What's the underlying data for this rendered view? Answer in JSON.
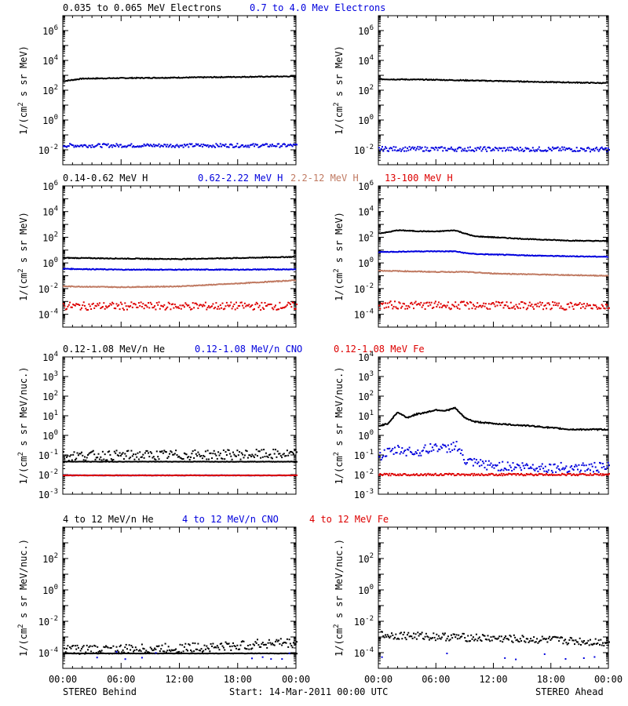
{
  "colors": {
    "black": "#000000",
    "blue": "#0000dd",
    "salmon": "#c07a62",
    "red": "#dd0000"
  },
  "footer": {
    "left": "STEREO Behind",
    "center": "Start: 14-Mar-2011 00:00 UTC",
    "right": "STEREO Ahead"
  },
  "x_ticks": [
    "00:00",
    "06:00",
    "12:00",
    "18:00",
    "00:00"
  ],
  "chart_data": [
    {
      "type": "scatter",
      "scale": "log",
      "ylabel": "1/(cm^2 s sr MeV)",
      "ylim_exp": [
        -3,
        7
      ],
      "y_ticks": [
        {
          "base": "10",
          "exp": "6"
        },
        {
          "base": "10",
          "exp": "4"
        },
        {
          "base": "10",
          "exp": "2"
        },
        {
          "base": "10",
          "exp": "0"
        },
        {
          "base": "10",
          "exp": "-2"
        }
      ],
      "y_tick_exps": [
        6,
        4,
        2,
        0,
        -2
      ],
      "legend": [
        {
          "label": "0.035 to 0.065 MeV Electrons",
          "color": "black"
        },
        {
          "label": "0.7 to 4.0 Mev Electrons",
          "color": "blue"
        }
      ],
      "behind": [
        {
          "name": "0.035 to 0.065 MeV Electrons",
          "color": "black",
          "style": "line",
          "x": [
            0,
            2,
            6,
            12,
            18,
            24
          ],
          "y": [
            400,
            600,
            650,
            700,
            780,
            850
          ]
        },
        {
          "name": "0.7 to 4.0 Mev Electrons",
          "color": "blue",
          "style": "dots",
          "x": [
            0,
            24
          ],
          "y": [
            0.022,
            0.022
          ],
          "scatter": 0.12
        }
      ],
      "ahead": [
        {
          "name": "0.035 to 0.065 MeV Electrons",
          "color": "black",
          "style": "line",
          "x": [
            0,
            6,
            12,
            18,
            24
          ],
          "y": [
            550,
            500,
            420,
            350,
            300
          ]
        },
        {
          "name": "0.7 to 4.0 Mev Electrons",
          "color": "blue",
          "style": "dots",
          "x": [
            0,
            24
          ],
          "y": [
            0.013,
            0.012
          ],
          "scatter": 0.15
        }
      ]
    },
    {
      "type": "scatter",
      "scale": "log",
      "ylabel": "1/(cm^2 s sr MeV)",
      "ylim_exp": [
        -5,
        6
      ],
      "y_ticks": [
        {
          "base": "10",
          "exp": "6"
        },
        {
          "base": "10",
          "exp": "4"
        },
        {
          "base": "10",
          "exp": "2"
        },
        {
          "base": "10",
          "exp": "0"
        },
        {
          "base": "10",
          "exp": "-2"
        },
        {
          "base": "10",
          "exp": "-4"
        }
      ],
      "y_tick_exps": [
        6,
        4,
        2,
        0,
        -2,
        -4
      ],
      "legend": [
        {
          "label": "0.14-0.62 MeV H",
          "color": "black"
        },
        {
          "label": "0.62-2.22 MeV H",
          "color": "blue"
        },
        {
          "label": "2.2-12 MeV H",
          "color": "salmon"
        },
        {
          "label": "13-100 MeV H",
          "color": "red"
        }
      ],
      "behind": [
        {
          "name": "0.14-0.62 MeV H",
          "color": "black",
          "style": "line",
          "x": [
            0,
            6,
            12,
            18,
            24
          ],
          "y": [
            2.5,
            2.2,
            2.0,
            2.4,
            3.0
          ]
        },
        {
          "name": "0.62-2.22 MeV H",
          "color": "blue",
          "style": "line",
          "x": [
            0,
            6,
            12,
            18,
            24
          ],
          "y": [
            0.35,
            0.3,
            0.3,
            0.3,
            0.32
          ]
        },
        {
          "name": "2.2-12 MeV H",
          "color": "salmon",
          "style": "line",
          "x": [
            0,
            6,
            12,
            18,
            24
          ],
          "y": [
            0.015,
            0.013,
            0.015,
            0.025,
            0.045
          ]
        },
        {
          "name": "13-100 MeV H",
          "color": "red",
          "style": "dots",
          "x": [
            0,
            24
          ],
          "y": [
            0.0005,
            0.0005
          ],
          "scatter": 0.3
        }
      ],
      "ahead": [
        {
          "name": "0.14-0.62 MeV H",
          "color": "black",
          "style": "line",
          "x": [
            0,
            1,
            2,
            4,
            6,
            8,
            9,
            10,
            12,
            16,
            20,
            24
          ],
          "y": [
            200,
            250,
            350,
            300,
            280,
            350,
            200,
            120,
            100,
            70,
            55,
            50
          ]
        },
        {
          "name": "0.62-2.22 MeV H",
          "color": "blue",
          "style": "line",
          "x": [
            0,
            4,
            8,
            9,
            10,
            12,
            18,
            24
          ],
          "y": [
            7,
            8,
            8,
            6,
            5,
            4.5,
            3.5,
            3
          ]
        },
        {
          "name": "2.2-12 MeV H",
          "color": "salmon",
          "style": "line",
          "x": [
            0,
            6,
            9,
            12,
            18,
            24
          ],
          "y": [
            0.25,
            0.2,
            0.2,
            0.15,
            0.12,
            0.1
          ]
        },
        {
          "name": "13-100 MeV H",
          "color": "red",
          "style": "dots",
          "x": [
            0,
            24
          ],
          "y": [
            0.0006,
            0.0005
          ],
          "scatter": 0.3
        }
      ]
    },
    {
      "type": "scatter",
      "scale": "log",
      "ylabel": "1/(cm^2 s sr MeV/nuc.)",
      "ylim_exp": [
        -3,
        4
      ],
      "y_ticks": [
        {
          "base": "10",
          "exp": "4"
        },
        {
          "base": "10",
          "exp": "3"
        },
        {
          "base": "10",
          "exp": "2"
        },
        {
          "base": "10",
          "exp": "1"
        },
        {
          "base": "10",
          "exp": "0"
        },
        {
          "base": "10",
          "exp": "-1"
        },
        {
          "base": "10",
          "exp": "-2"
        },
        {
          "base": "10",
          "exp": "-3"
        }
      ],
      "y_tick_exps": [
        4,
        3,
        2,
        1,
        0,
        -1,
        -2,
        -3
      ],
      "legend": [
        {
          "label": "0.12-1.08 MeV/n He",
          "color": "black"
        },
        {
          "label": "0.12-1.08 MeV/n CNO",
          "color": "blue"
        },
        {
          "label": "0.12-1.08 MeV Fe",
          "color": "red"
        }
      ],
      "behind": [
        {
          "name": "0.12-1.08 MeV/n He",
          "color": "black",
          "style": "dots",
          "x": [
            0,
            24
          ],
          "y": [
            0.1,
            0.12
          ],
          "scatter": 0.25
        },
        {
          "name": "0.12-1.08 MeV/n He",
          "color": "black",
          "style": "dots",
          "x": [
            0,
            24
          ],
          "y": [
            0.05,
            0.05
          ],
          "scatter": 0.01
        },
        {
          "name": "0.12-1.08 MeV/n CNO",
          "color": "blue",
          "style": "dots",
          "x": [
            0,
            24
          ],
          "y": [
            0.01,
            0.01
          ],
          "scatter": 0.01
        },
        {
          "name": "0.12-1.08 MeV Fe",
          "color": "red",
          "style": "dots",
          "x": [
            0,
            24
          ],
          "y": [
            0.01,
            0.01
          ],
          "scatter": 0.01
        }
      ],
      "ahead": [
        {
          "name": "0.12-1.08 MeV/n He",
          "color": "black",
          "style": "line",
          "x": [
            0,
            1,
            2,
            3,
            4,
            5,
            6,
            7,
            8,
            9,
            10,
            12,
            16,
            20,
            24
          ],
          "y": [
            3,
            4,
            15,
            8,
            12,
            15,
            20,
            18,
            25,
            8,
            5,
            4,
            3,
            2,
            2
          ]
        },
        {
          "name": "0.12-1.08 MeV/n CNO",
          "color": "blue",
          "style": "dots",
          "x": [
            0,
            2,
            4,
            6,
            7,
            8,
            9,
            10,
            12,
            18,
            24
          ],
          "y": [
            0.1,
            0.2,
            0.15,
            0.3,
            0.2,
            0.4,
            0.05,
            0.04,
            0.03,
            0.025,
            0.025
          ],
          "scatter": 0.25
        },
        {
          "name": "0.12-1.08 MeV Fe",
          "color": "red",
          "style": "dots",
          "x": [
            0,
            24
          ],
          "y": [
            0.011,
            0.011
          ],
          "scatter": 0.05
        }
      ]
    },
    {
      "type": "scatter",
      "scale": "log",
      "ylabel": "1/(cm^2 s sr MeV/nuc.)",
      "ylim_exp": [
        -5,
        4
      ],
      "y_ticks": [
        {
          "base": "10",
          "exp": "2"
        },
        {
          "base": "10",
          "exp": "0"
        },
        {
          "base": "10",
          "exp": "-2"
        },
        {
          "base": "10",
          "exp": "-4"
        }
      ],
      "y_tick_exps": [
        2,
        0,
        -2,
        -4
      ],
      "legend": [
        {
          "label": "4 to 12 MeV/n He",
          "color": "black"
        },
        {
          "label": "4 to 12 MeV/n CNO",
          "color": "blue"
        },
        {
          "label": "4 to 12 MeV Fe",
          "color": "red"
        }
      ],
      "behind": [
        {
          "name": "4 to 12 MeV/n He",
          "color": "black",
          "style": "dots",
          "x": [
            0,
            6,
            12,
            18,
            22,
            24
          ],
          "y": [
            0.00018,
            0.00018,
            0.00022,
            0.0003,
            0.0005,
            0.0004
          ],
          "scatter": 0.3
        },
        {
          "name": "4 to 12 MeV/n He",
          "color": "black",
          "style": "dots",
          "x": [
            0,
            24
          ],
          "y": [
            0.0001,
            0.0001
          ],
          "scatter": 0.01
        },
        {
          "name": "4 to 12 MeV/n CNO",
          "color": "blue",
          "style": "sparse",
          "x": [
            0,
            24
          ],
          "y": [
            0.0001,
            0.0001
          ]
        }
      ],
      "ahead": [
        {
          "name": "4 to 12 MeV/n He",
          "color": "black",
          "style": "dots",
          "x": [
            0,
            6,
            12,
            18,
            24
          ],
          "y": [
            0.0015,
            0.0012,
            0.0009,
            0.0007,
            0.0005
          ],
          "scatter": 0.25
        },
        {
          "name": "4 to 12 MeV/n CNO",
          "color": "blue",
          "style": "sparse",
          "x": [
            0,
            24
          ],
          "y": [
            0.0001,
            0.0001
          ]
        }
      ]
    }
  ]
}
